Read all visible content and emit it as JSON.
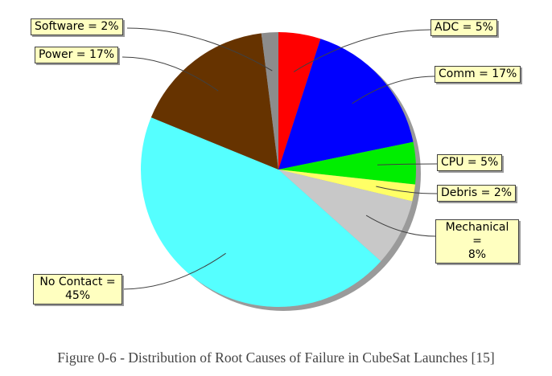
{
  "caption": "Figure 0-6 - Distribution of Root Causes of Failure in CubeSat Launches [15]",
  "chart_data": {
    "type": "pie",
    "start": "12 o'clock",
    "direction": "clockwise",
    "legend": "none",
    "slices": [
      {
        "label": "ADC = 5%",
        "value": 5,
        "color": "#ff0000"
      },
      {
        "label": "Comm = 17%",
        "value": 17,
        "color": "#0000ff"
      },
      {
        "label": "CPU = 5%",
        "value": 5,
        "color": "#00ee00"
      },
      {
        "label": "Debris = 2%",
        "value": 2,
        "color": "#ffff66"
      },
      {
        "label": "Mechanical = 8%",
        "label_lines": [
          "Mechanical =",
          "8%"
        ],
        "value": 8,
        "color": "#c8c8c8"
      },
      {
        "label": "No Contact = 45%",
        "label_lines": [
          "No Contact =",
          "45%"
        ],
        "value": 45,
        "color": "#55ffff"
      },
      {
        "label": "Power = 17%",
        "value": 17,
        "color": "#663300"
      },
      {
        "label": "Software = 2%",
        "value": 2,
        "color": "#8c8c8c"
      }
    ]
  }
}
